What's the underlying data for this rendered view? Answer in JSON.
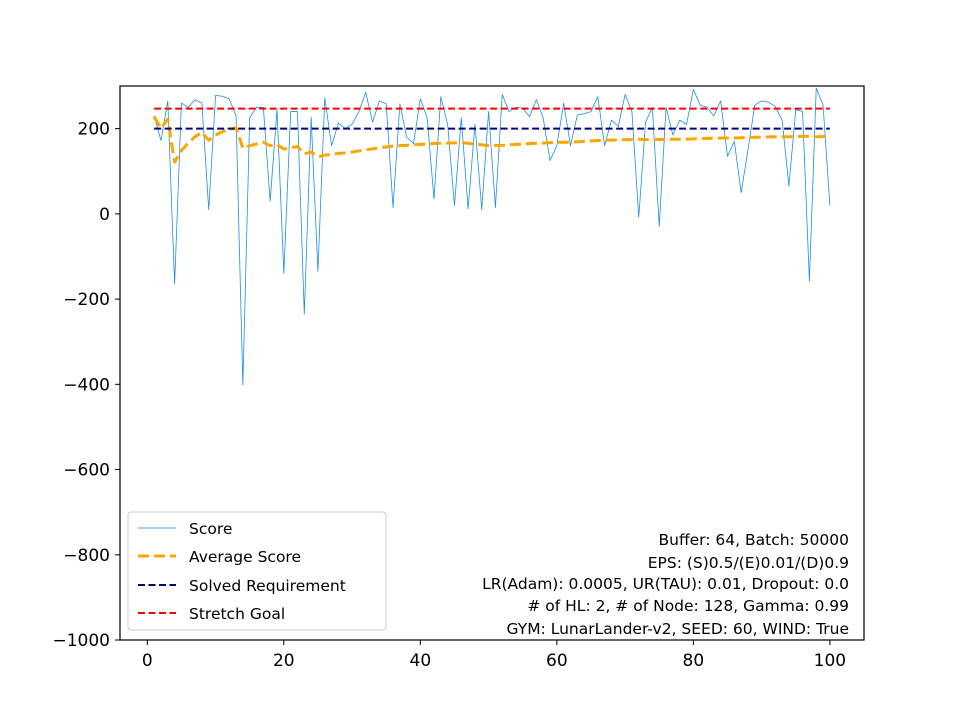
{
  "chart_data": {
    "type": "line",
    "title": "",
    "xlabel": "",
    "ylabel": "",
    "xlim": [
      -4,
      105
    ],
    "ylim": [
      -1000,
      300
    ],
    "xticks": [
      0,
      20,
      40,
      60,
      80,
      100
    ],
    "yticks": [
      -1000,
      -800,
      -600,
      -400,
      -200,
      0,
      200
    ],
    "ytick_labels": [
      "−1000",
      "−800",
      "−600",
      "−400",
      "−200",
      "0",
      "200"
    ],
    "grid": false,
    "legend_position": "lower-left",
    "series": [
      {
        "name": "Score",
        "color": "#1f8ee6",
        "style": "solid-thin",
        "x": [
          1,
          2,
          3,
          4,
          5,
          6,
          7,
          8,
          9,
          10,
          11,
          12,
          13,
          14,
          15,
          16,
          17,
          18,
          19,
          20,
          21,
          22,
          23,
          24,
          25,
          26,
          27,
          28,
          29,
          30,
          31,
          32,
          33,
          34,
          35,
          36,
          37,
          38,
          39,
          40,
          41,
          42,
          43,
          44,
          45,
          46,
          47,
          48,
          49,
          50,
          51,
          52,
          53,
          54,
          55,
          56,
          57,
          58,
          59,
          60,
          61,
          62,
          63,
          64,
          65,
          66,
          67,
          68,
          69,
          70,
          71,
          72,
          73,
          74,
          75,
          76,
          77,
          78,
          79,
          80,
          81,
          82,
          83,
          84,
          85,
          86,
          87,
          88,
          89,
          90,
          91,
          92,
          93,
          94,
          95,
          96,
          97,
          98,
          99,
          100
        ],
        "values": [
          230,
          172,
          265,
          -165,
          260,
          250,
          268,
          260,
          10,
          278,
          276,
          270,
          230,
          -402,
          225,
          250,
          250,
          30,
          245,
          -140,
          240,
          240,
          -235,
          227,
          -135,
          272,
          160,
          213,
          200,
          210,
          240,
          285,
          215,
          265,
          258,
          15,
          258,
          180,
          165,
          270,
          225,
          35,
          275,
          210,
          20,
          225,
          12,
          210,
          10,
          240,
          15,
          280,
          240,
          250,
          248,
          228,
          268,
          225,
          125,
          160,
          260,
          160,
          232,
          235,
          240,
          275,
          160,
          220,
          205,
          280,
          240,
          -8,
          215,
          250,
          -30,
          250,
          185,
          220,
          210,
          292,
          255,
          250,
          230,
          265,
          135,
          170,
          50,
          150,
          255,
          265,
          262,
          252,
          220,
          65,
          245,
          240,
          -158,
          295,
          255,
          20
        ]
      },
      {
        "name": "Average Score",
        "color": "#ffa500",
        "style": "dashed-thick",
        "x": [
          1,
          2,
          3,
          4,
          5,
          6,
          7,
          8,
          9,
          10,
          11,
          12,
          13,
          14,
          15,
          16,
          17,
          18,
          19,
          20,
          21,
          22,
          23,
          24,
          25,
          26,
          27,
          28,
          29,
          30,
          32,
          34,
          36,
          38,
          40,
          42,
          44,
          46,
          48,
          50,
          52,
          54,
          56,
          58,
          60,
          62,
          64,
          66,
          68,
          70,
          72,
          74,
          76,
          78,
          80,
          82,
          84,
          86,
          88,
          90,
          92,
          94,
          96,
          98,
          100
        ],
        "values": [
          228,
          201,
          222,
          121,
          149,
          166,
          181,
          191,
          173,
          185,
          193,
          198,
          202,
          154,
          160,
          164,
          168,
          160,
          163,
          152,
          155,
          158,
          141,
          145,
          134,
          138,
          139,
          142,
          143,
          145,
          150,
          155,
          159,
          161,
          163,
          165,
          166,
          167,
          164,
          160,
          161,
          163,
          165,
          166,
          168,
          168,
          170,
          172,
          173,
          174,
          175,
          174,
          175,
          175,
          176,
          177,
          178,
          178,
          179,
          180,
          181,
          181,
          182,
          181,
          182
        ]
      },
      {
        "name": "Solved Requirement",
        "color": "#00007f",
        "style": "dashed",
        "x": [
          1,
          100
        ],
        "values": [
          200,
          200
        ]
      },
      {
        "name": "Stretch Goal",
        "color": "#ff0000",
        "style": "dashed",
        "x": [
          1,
          100
        ],
        "values": [
          247,
          247
        ]
      }
    ],
    "annotations": [
      "Buffer: 64, Batch: 50000",
      "EPS: (S)0.5/(E)0.01/(D)0.9",
      "LR(Adam): 0.0005, UR(TAU): 0.01, Dropout: 0.0",
      "# of HL: 2, # of Node: 128, Gamma: 0.99",
      "GYM: LunarLander-v2, SEED: 60, WIND: True"
    ]
  }
}
